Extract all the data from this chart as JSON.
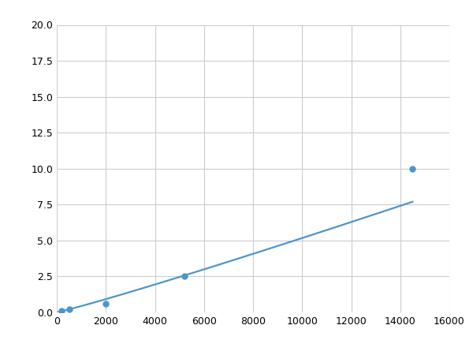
{
  "x_points": [
    200,
    500,
    2000,
    5200,
    14500
  ],
  "y_points": [
    0.1,
    0.2,
    0.6,
    2.5,
    10.0
  ],
  "line_color": "#4d96c9",
  "marker_color": "#4d96c9",
  "marker_size": 5,
  "line_width": 1.6,
  "xlim": [
    0,
    16000
  ],
  "ylim": [
    0,
    20.0
  ],
  "xticks": [
    0,
    2000,
    4000,
    6000,
    8000,
    10000,
    12000,
    14000,
    16000
  ],
  "yticks": [
    0.0,
    2.5,
    5.0,
    7.5,
    10.0,
    12.5,
    15.0,
    17.5,
    20.0
  ],
  "grid_color": "#cccccc",
  "background_color": "#ffffff",
  "figsize": [
    6.0,
    4.5
  ],
  "dpi": 100
}
